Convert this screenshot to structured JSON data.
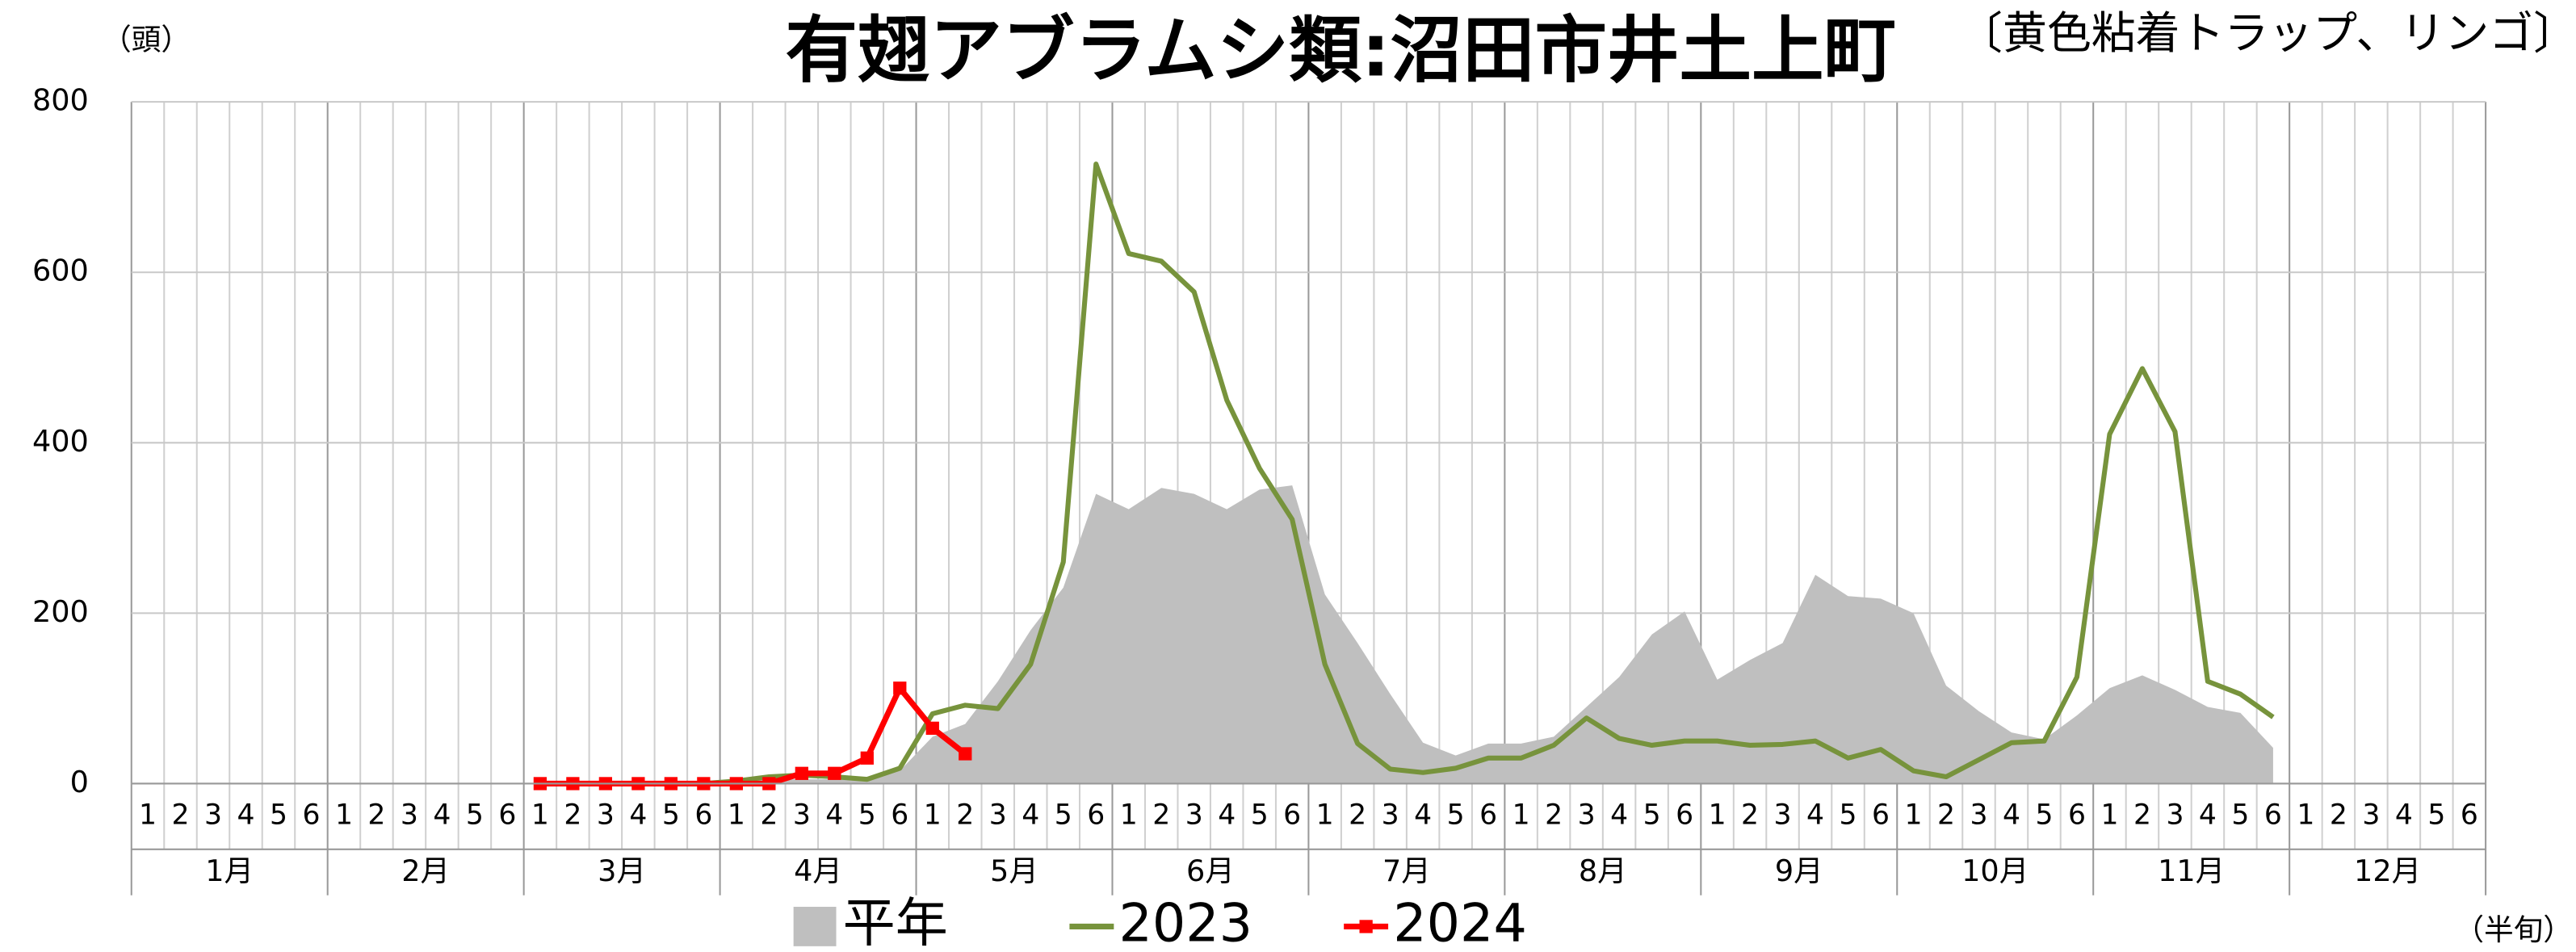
{
  "chart_data": {
    "type": "line",
    "title": "有翅アブラムシ類:沼田市井土上町",
    "subtitle": "〔黄色粘着トラップ、リンゴ〕",
    "y_label": "（頭）",
    "x_label": "（半旬）",
    "categories": [
      "1",
      "2",
      "3",
      "4",
      "5",
      "6",
      "1",
      "2",
      "3",
      "4",
      "5",
      "6",
      "1",
      "2",
      "3",
      "4",
      "5",
      "6",
      "1",
      "2",
      "3",
      "4",
      "5",
      "6",
      "1",
      "2",
      "3",
      "4",
      "5",
      "6",
      "1",
      "2",
      "3",
      "4",
      "5",
      "6",
      "1",
      "2",
      "3",
      "4",
      "5",
      "6",
      "1",
      "2",
      "3",
      "4",
      "5",
      "6",
      "1",
      "2",
      "3",
      "4",
      "5",
      "6",
      "1",
      "2",
      "3",
      "4",
      "5",
      "6",
      "1",
      "2",
      "3",
      "4",
      "5",
      "6",
      "1",
      "2",
      "3",
      "4",
      "5",
      "6"
    ],
    "category_groups": [
      "1月",
      "2月",
      "3月",
      "4月",
      "5月",
      "6月",
      "7月",
      "8月",
      "9月",
      "10月",
      "11月",
      "12月"
    ],
    "ylim": [
      0,
      800
    ],
    "yticks": [
      0,
      200,
      400,
      600,
      800
    ],
    "grid": true,
    "series": [
      {
        "name": "平年",
        "type": "area",
        "color": "#bfbfbf",
        "values": [
          null,
          null,
          null,
          null,
          null,
          null,
          null,
          null,
          null,
          null,
          null,
          null,
          null,
          null,
          null,
          null,
          null,
          null,
          3,
          5,
          5,
          5,
          8,
          15,
          55,
          70,
          120,
          180,
          230,
          340,
          322,
          347,
          340,
          322,
          345,
          350,
          222,
          165,
          105,
          48,
          33,
          47,
          47,
          55,
          90,
          125,
          175,
          202,
          122,
          145,
          165,
          245,
          220,
          217,
          200,
          115,
          85,
          60,
          52,
          80,
          112,
          127,
          110,
          90,
          83,
          42,
          null,
          null,
          null,
          null,
          null,
          null
        ]
      },
      {
        "name": "2023",
        "type": "line",
        "color": "#77933c",
        "values": [
          null,
          null,
          null,
          null,
          null,
          null,
          null,
          null,
          null,
          null,
          null,
          null,
          0,
          0,
          0,
          0,
          0,
          0,
          3,
          8,
          10,
          8,
          5,
          18,
          82,
          92,
          88,
          140,
          260,
          727,
          622,
          613,
          577,
          450,
          370,
          310,
          140,
          47,
          17,
          13,
          18,
          30,
          30,
          45,
          77,
          53,
          45,
          50,
          50,
          45,
          46,
          50,
          30,
          40,
          15,
          8,
          28,
          48,
          50,
          125,
          410,
          487,
          413,
          120,
          105,
          78,
          null,
          null,
          null,
          null,
          null,
          null
        ]
      },
      {
        "name": "2024",
        "type": "line",
        "marker": "square",
        "color": "#ff0000",
        "values": [
          null,
          null,
          null,
          null,
          null,
          null,
          null,
          null,
          null,
          null,
          null,
          null,
          0,
          0,
          0,
          0,
          0,
          0,
          0,
          0,
          12,
          12,
          30,
          112,
          65,
          35,
          null,
          null,
          null,
          null,
          null,
          null,
          null,
          null,
          null,
          null,
          null,
          null,
          null,
          null,
          null,
          null,
          null,
          null,
          null,
          null,
          null,
          null,
          null,
          null,
          null,
          null,
          null,
          null,
          null,
          null,
          null,
          null,
          null,
          null,
          null,
          null,
          null,
          null,
          null,
          null,
          null,
          null,
          null,
          null,
          null,
          null
        ]
      }
    ]
  }
}
